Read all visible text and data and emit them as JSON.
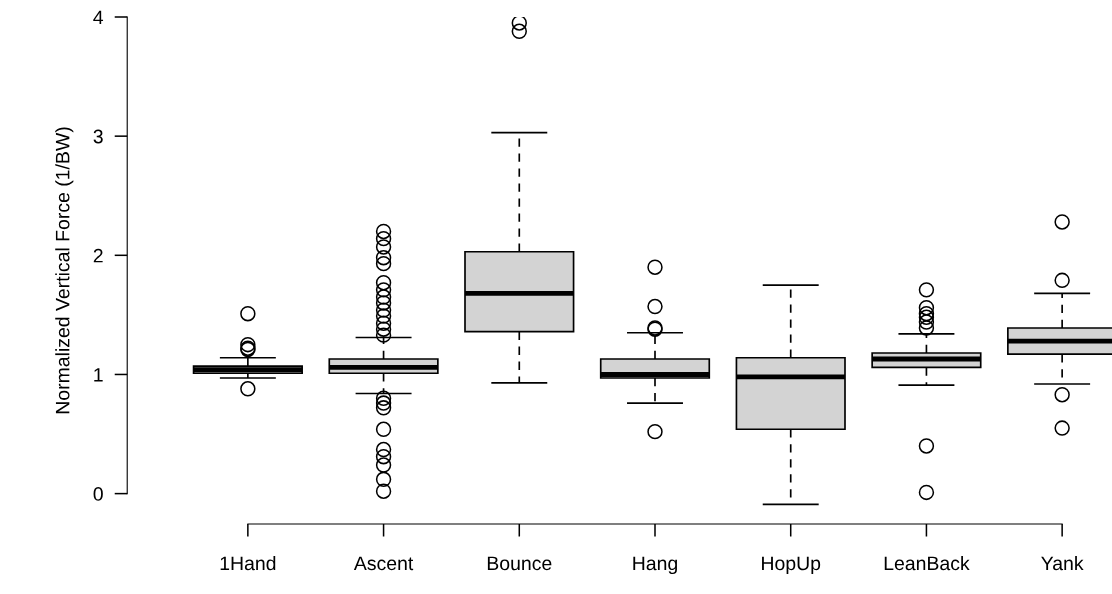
{
  "chart_data": {
    "type": "box",
    "ylabel": "Normalized Vertical Force (1/BW)",
    "categories": [
      "1Hand",
      "Ascent",
      "Bounce",
      "Hang",
      "HopUp",
      "LeanBack",
      "Yank"
    ],
    "color": "#d3d3d3",
    "marker": "circle",
    "grid": false,
    "ylim": [
      -0.255,
      4
    ],
    "yticks": [
      0,
      1,
      2,
      3,
      4
    ],
    "boxes": [
      {
        "low": 0.97,
        "q1": 1.01,
        "median": 1.04,
        "q3": 1.07,
        "high": 1.14,
        "outliers": [
          1.51,
          1.25,
          1.22,
          1.21,
          0.88
        ]
      },
      {
        "low": 0.84,
        "q1": 1.01,
        "median": 1.06,
        "q3": 1.13,
        "high": 1.31,
        "outliers": [
          2.2,
          2.14,
          2.07,
          1.98,
          1.93,
          1.77,
          1.71,
          1.65,
          1.6,
          1.54,
          1.49,
          1.43,
          1.38,
          1.33,
          0.8,
          0.76,
          0.72,
          0.54,
          0.37,
          0.31,
          0.24,
          0.12,
          0.02
        ]
      },
      {
        "low": 0.93,
        "q1": 1.36,
        "median": 1.68,
        "q3": 2.03,
        "high": 3.03,
        "outliers": [
          3.95,
          3.88
        ]
      },
      {
        "low": 0.76,
        "q1": 0.97,
        "median": 1.0,
        "q3": 1.13,
        "high": 1.35,
        "outliers": [
          1.9,
          1.57,
          1.39,
          1.38,
          0.52
        ]
      },
      {
        "low": -0.09,
        "q1": 0.54,
        "median": 0.98,
        "q3": 1.14,
        "high": 1.75
      },
      {
        "low": 0.91,
        "q1": 1.06,
        "median": 1.13,
        "q3": 1.18,
        "high": 1.34,
        "outliers": [
          1.71,
          1.56,
          1.51,
          1.48,
          1.44,
          1.39,
          0.4,
          0.01
        ]
      },
      {
        "low": 0.92,
        "q1": 1.17,
        "median": 1.28,
        "q3": 1.39,
        "high": 1.68,
        "outliers": [
          2.28,
          1.79,
          0.83,
          0.55
        ]
      }
    ]
  }
}
